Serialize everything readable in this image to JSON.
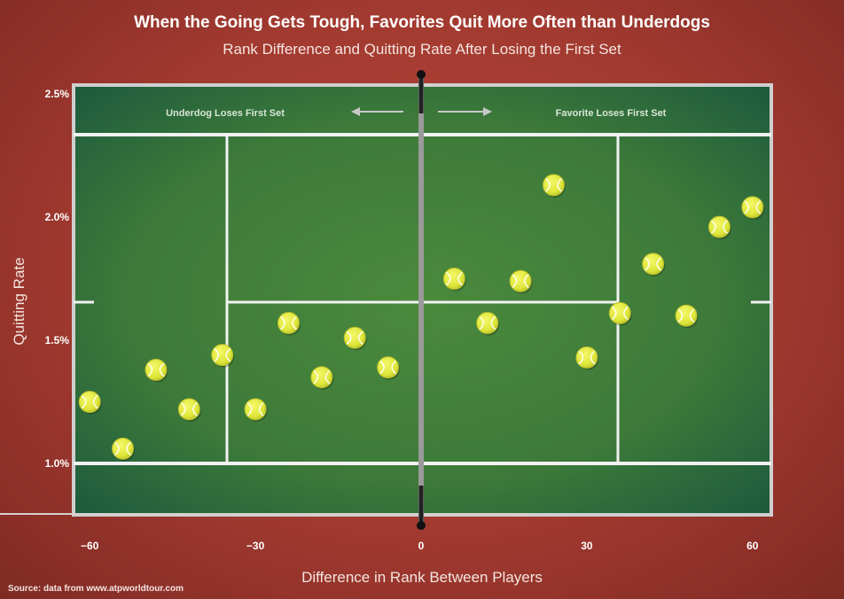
{
  "chart_data": {
    "type": "scatter",
    "title": "When the Going Gets Tough, Favorites Quit More Often than Underdogs",
    "subtitle": "Rank Difference and Quitting Rate After Losing the First Set",
    "xlabel": "Difference in Rank Between Players",
    "ylabel": "Quitting Rate",
    "xlim": [
      -63,
      63
    ],
    "ylim": [
      0.8,
      2.5
    ],
    "x_ticks": [
      -60,
      -30,
      0,
      30,
      60
    ],
    "x_tick_labels": [
      "−60",
      "−30",
      "0",
      "30",
      "60"
    ],
    "y_ticks": [
      1.0,
      1.5,
      2.0,
      2.5
    ],
    "y_tick_labels": [
      "1.0%",
      "1.5%",
      "2.0%",
      "2.5%"
    ],
    "annotations": {
      "left": "Underdog Loses First Set",
      "right": "Favorite Loses First Set"
    },
    "points": [
      {
        "x": -60,
        "y": 1.25
      },
      {
        "x": -54,
        "y": 1.06
      },
      {
        "x": -48,
        "y": 1.38
      },
      {
        "x": -42,
        "y": 1.22
      },
      {
        "x": -36,
        "y": 1.44
      },
      {
        "x": -30,
        "y": 1.22
      },
      {
        "x": -24,
        "y": 1.57
      },
      {
        "x": -18,
        "y": 1.35
      },
      {
        "x": -12,
        "y": 1.51
      },
      {
        "x": -6,
        "y": 1.39
      },
      {
        "x": 6,
        "y": 1.75
      },
      {
        "x": 12,
        "y": 1.57
      },
      {
        "x": 18,
        "y": 1.74
      },
      {
        "x": 24,
        "y": 2.13
      },
      {
        "x": 30,
        "y": 1.43
      },
      {
        "x": 36,
        "y": 1.61
      },
      {
        "x": 42,
        "y": 1.81
      },
      {
        "x": 48,
        "y": 1.6
      },
      {
        "x": 54,
        "y": 1.96
      },
      {
        "x": 60,
        "y": 2.04
      }
    ],
    "colors": {
      "background": "#a23a30",
      "court": "#3d7a3a",
      "lines": "#ffffff",
      "ball": "#e0e838"
    }
  },
  "source": "Source: data from www.atpworldtour.com"
}
